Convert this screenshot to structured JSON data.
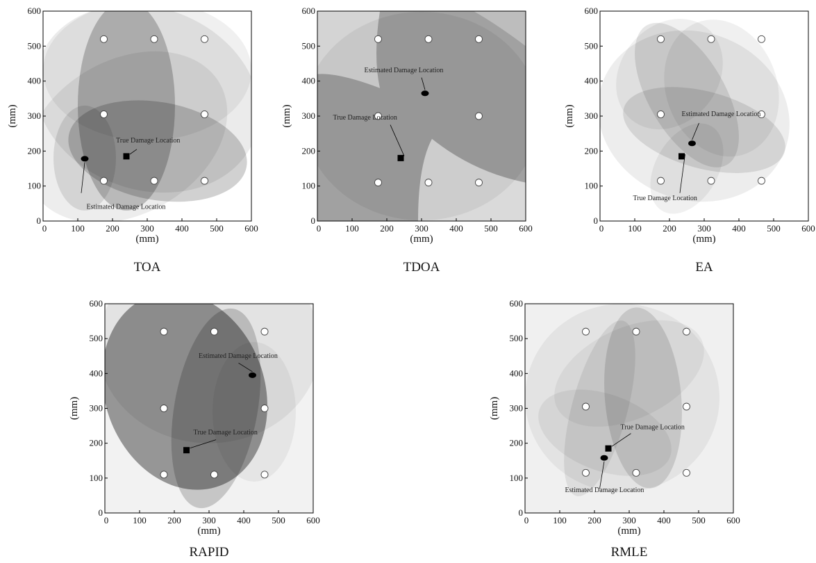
{
  "chart_data": [
    {
      "type": "scatter",
      "caption": "TOA",
      "xlabel": "(mm)",
      "ylabel": "(mm)",
      "xlim": [
        0,
        600
      ],
      "ylim": [
        0,
        600
      ],
      "xticks": [
        "0",
        "100",
        "200",
        "300",
        "400",
        "500",
        "600"
      ],
      "yticks": [
        "0",
        "100",
        "200",
        "300",
        "400",
        "500",
        "600"
      ],
      "sensors": [
        [
          175,
          520
        ],
        [
          320,
          520
        ],
        [
          465,
          520
        ],
        [
          175,
          305
        ],
        [
          465,
          305
        ],
        [
          175,
          115
        ],
        [
          320,
          115
        ],
        [
          465,
          115
        ]
      ],
      "true_damage": [
        240,
        185
      ],
      "estimated_damage": [
        120,
        178
      ],
      "annotations": {
        "true": "True Damage Location",
        "estimated": "Estimated Damage Location"
      }
    },
    {
      "type": "scatter",
      "caption": "TDOA",
      "xlabel": "(mm)",
      "ylabel": "(mm)",
      "xlim": [
        0,
        600
      ],
      "ylim": [
        0,
        600
      ],
      "xticks": [
        "0",
        "100",
        "200",
        "300",
        "400",
        "500",
        "600"
      ],
      "yticks": [
        "0",
        "100",
        "200",
        "300",
        "400",
        "500",
        "600"
      ],
      "sensors": [
        [
          175,
          520
        ],
        [
          320,
          520
        ],
        [
          465,
          520
        ],
        [
          175,
          300
        ],
        [
          465,
          300
        ],
        [
          175,
          110
        ],
        [
          320,
          110
        ],
        [
          465,
          110
        ]
      ],
      "true_damage": [
        240,
        180
      ],
      "estimated_damage": [
        310,
        365
      ],
      "annotations": {
        "true": "True Damage Location",
        "estimated": "Estimated Damage Location"
      }
    },
    {
      "type": "scatter",
      "caption": "EA",
      "xlabel": "(mm)",
      "ylabel": "(mm)",
      "xlim": [
        0,
        600
      ],
      "ylim": [
        0,
        600
      ],
      "xticks": [
        "0",
        "100",
        "200",
        "300",
        "400",
        "500",
        "600"
      ],
      "yticks": [
        "0",
        "100",
        "200",
        "300",
        "400",
        "500",
        "600"
      ],
      "sensors": [
        [
          175,
          520
        ],
        [
          320,
          520
        ],
        [
          465,
          520
        ],
        [
          175,
          305
        ],
        [
          465,
          305
        ],
        [
          175,
          115
        ],
        [
          320,
          115
        ],
        [
          465,
          115
        ]
      ],
      "true_damage": [
        235,
        185
      ],
      "estimated_damage": [
        265,
        222
      ],
      "annotations": {
        "true": "True Damage Location",
        "estimated": "Estimated Damage Location"
      }
    },
    {
      "type": "scatter",
      "caption": "RAPID",
      "xlabel": "(mm)",
      "ylabel": "(mm)",
      "xlim": [
        0,
        600
      ],
      "ylim": [
        0,
        600
      ],
      "xticks": [
        "0",
        "100",
        "200",
        "300",
        "400",
        "500",
        "600"
      ],
      "yticks": [
        "0",
        "100",
        "200",
        "300",
        "400",
        "500",
        "600"
      ],
      "sensors": [
        [
          170,
          520
        ],
        [
          315,
          520
        ],
        [
          460,
          520
        ],
        [
          170,
          300
        ],
        [
          460,
          300
        ],
        [
          170,
          110
        ],
        [
          315,
          110
        ],
        [
          460,
          110
        ]
      ],
      "true_damage": [
        235,
        180
      ],
      "estimated_damage": [
        425,
        395
      ],
      "annotations": {
        "true": "True Damage Location",
        "estimated": "Estimated Damage Location"
      }
    },
    {
      "type": "scatter",
      "caption": "RMLE",
      "xlabel": "(mm)",
      "ylabel": "(mm)",
      "xlim": [
        0,
        600
      ],
      "ylim": [
        0,
        600
      ],
      "xticks": [
        "0",
        "100",
        "200",
        "300",
        "400",
        "500",
        "600"
      ],
      "yticks": [
        "0",
        "100",
        "200",
        "300",
        "400",
        "500",
        "600"
      ],
      "sensors": [
        [
          175,
          520
        ],
        [
          320,
          520
        ],
        [
          465,
          520
        ],
        [
          175,
          305
        ],
        [
          465,
          305
        ],
        [
          175,
          115
        ],
        [
          320,
          115
        ],
        [
          465,
          115
        ]
      ],
      "true_damage": [
        240,
        185
      ],
      "estimated_damage": [
        228,
        158
      ],
      "annotations": {
        "true": "True Damage Location",
        "estimated": "Estimated Damage Location"
      }
    }
  ]
}
